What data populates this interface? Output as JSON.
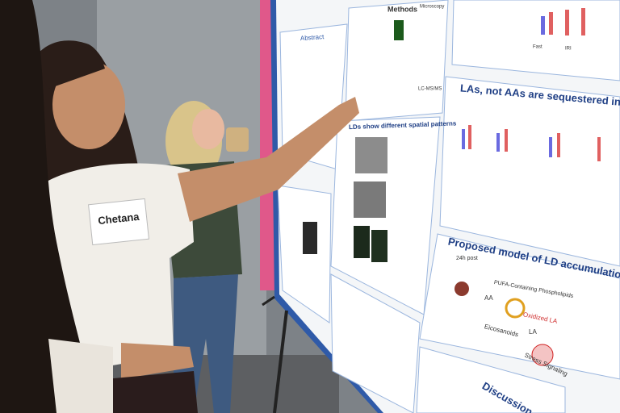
{
  "name_tag": {
    "name": "Chetana"
  },
  "poster": {
    "abstract": "Abstract",
    "methods": "Methods",
    "microscopy": "Microscopy",
    "lcms": "LC-MS/MS",
    "result_1": "LAs, not AAs are sequestered in IRI neutral li",
    "result_2": "LDs show different spatial patterns",
    "model_title": "Proposed model of LD accumulation during renal IRI",
    "model_labels": [
      "PUFA-Containing Phospholipids",
      "Oxidized LA",
      "Eicosanoids",
      "Stress Signaling",
      "AA",
      "LA",
      "24h post"
    ],
    "discussion": "Discussion",
    "axis_labels": [
      "Fast",
      "IRI"
    ]
  }
}
